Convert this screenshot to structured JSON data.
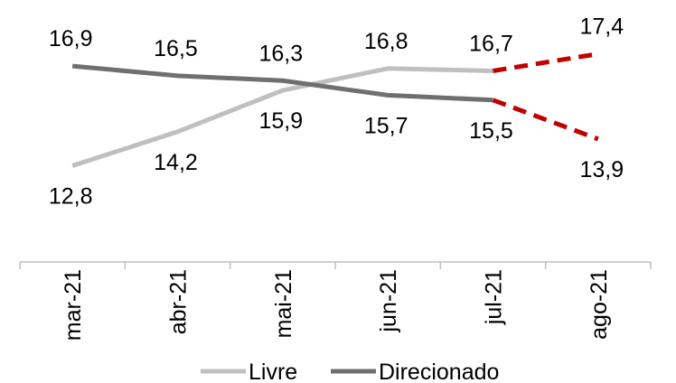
{
  "chart_data": {
    "type": "line",
    "categories": [
      "mar-21",
      "abr-21",
      "mai-21",
      "jun-21",
      "jul-21",
      "ago-21"
    ],
    "series": [
      {
        "name": "Livre",
        "color": "#bfbfbf",
        "values": [
          12.8,
          14.2,
          15.9,
          16.8,
          16.7,
          17.4
        ],
        "labels": [
          "12,8",
          "14,2",
          "15,9",
          "16,8",
          "16,7",
          "17,4"
        ],
        "label_position": [
          "below",
          "below",
          "below",
          "above",
          "above",
          "above"
        ]
      },
      {
        "name": "Direcionado",
        "color": "#6f6f6f",
        "values": [
          16.9,
          16.5,
          16.3,
          15.7,
          15.5,
          13.9
        ],
        "labels": [
          "16,9",
          "16,5",
          "16,3",
          "15,7",
          "15,5",
          "13,9"
        ],
        "label_position": [
          "above",
          "above",
          "above",
          "below",
          "below",
          "below"
        ]
      }
    ],
    "projection_color": "#c00000",
    "projection_from_index": 4,
    "ylim": [
      11.0,
      18.5
    ],
    "title": "",
    "xlabel": "",
    "ylabel": "",
    "grid": false,
    "legend_position": "bottom"
  }
}
